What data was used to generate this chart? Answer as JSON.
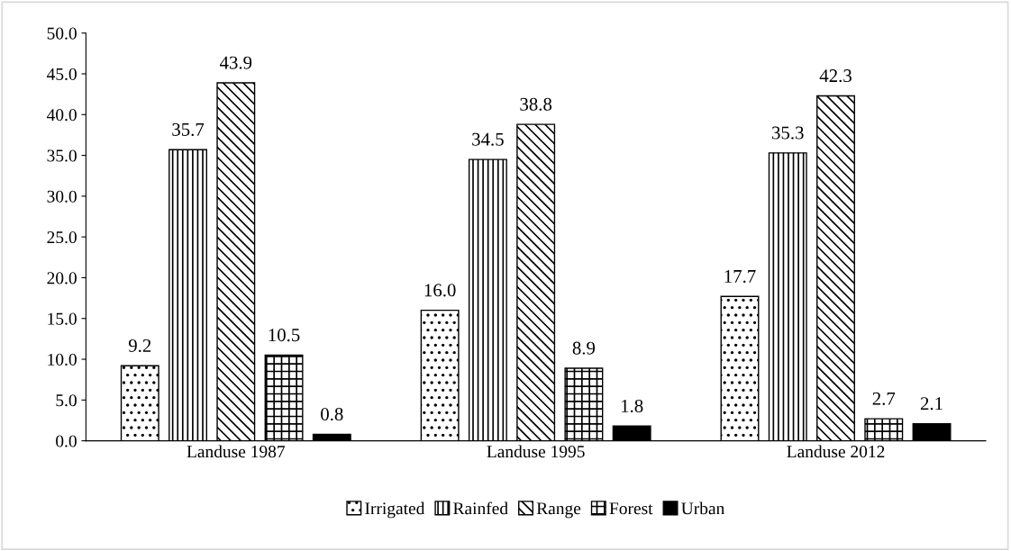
{
  "chart_data": {
    "type": "bar",
    "categories": [
      "Landuse 1987",
      "Landuse 1995",
      "Landuse 2012"
    ],
    "series": [
      {
        "name": "Irrigated",
        "color": "#000000",
        "values": [
          9.2,
          16.0,
          17.7
        ],
        "value_labels": [
          "9.2",
          "16.0",
          "17.7"
        ]
      },
      {
        "name": "Rainfed",
        "color": "#000000",
        "values": [
          35.7,
          34.5,
          35.3
        ],
        "value_labels": [
          "35.7",
          "34.5",
          "35.3"
        ]
      },
      {
        "name": "Range",
        "color": "#000000",
        "values": [
          43.9,
          38.8,
          42.3
        ],
        "value_labels": [
          "43.9",
          "38.8",
          "42.3"
        ]
      },
      {
        "name": "Forest",
        "color": "#000000",
        "values": [
          10.5,
          8.9,
          2.7
        ],
        "value_labels": [
          "10.5",
          "8.9",
          "2.7"
        ]
      },
      {
        "name": "Urban",
        "color": "#000000",
        "values": [
          0.8,
          1.8,
          2.1
        ],
        "value_labels": [
          "0.8",
          "1.8",
          "2.1"
        ]
      }
    ],
    "ylim": [
      0,
      50
    ],
    "yticks": [
      {
        "value": 0,
        "label": "0.0"
      },
      {
        "value": 5,
        "label": "5.0"
      },
      {
        "value": 10,
        "label": "10.0"
      },
      {
        "value": 15,
        "label": "15.0"
      },
      {
        "value": 20,
        "label": "20.0"
      },
      {
        "value": 25,
        "label": "25.0"
      },
      {
        "value": 30,
        "label": "30.0"
      },
      {
        "value": 35,
        "label": "35.0"
      },
      {
        "value": 40,
        "label": "40.0"
      },
      {
        "value": 45,
        "label": "45.0"
      },
      {
        "value": 50,
        "label": "50.0"
      }
    ],
    "grid": false,
    "legend": "bottom"
  }
}
